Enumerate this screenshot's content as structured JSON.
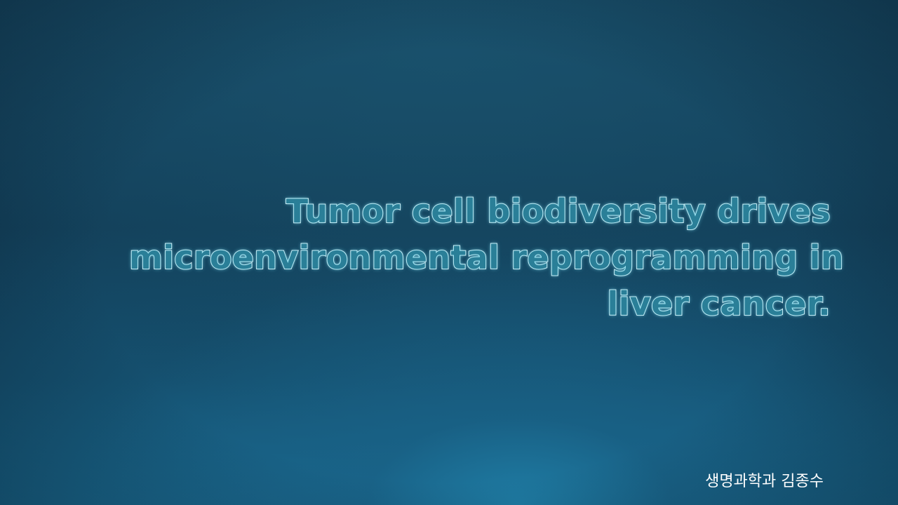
{
  "slide": {
    "title_lines": [
      "Tumor cell biodiversity drives",
      "microenvironmental reprogramming in",
      "liver cancer."
    ],
    "author": "생명과학과 김종수"
  },
  "colors": {
    "background_dark": "#123e58",
    "background_glow": "#1f7da5",
    "title_fill": "#2a7f98",
    "title_outline": "#e4f4f8",
    "author_text": "#ffffff"
  }
}
